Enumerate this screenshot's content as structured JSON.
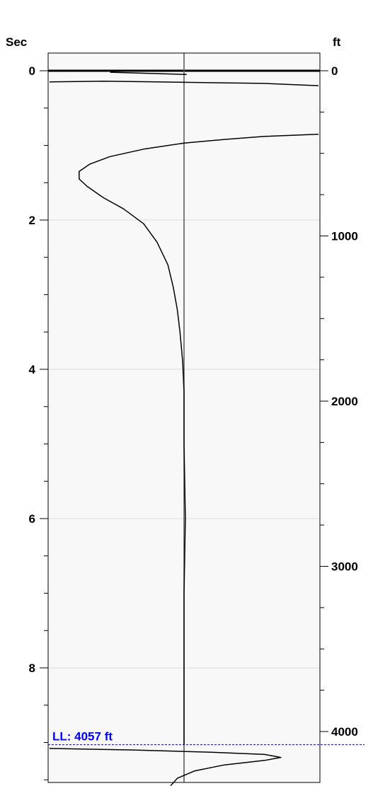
{
  "chart_data": {
    "type": "line",
    "left_axis": {
      "unit_label": "Sec",
      "ticks": [
        "0",
        "2",
        "4",
        "6",
        "8"
      ],
      "range": [
        0,
        9.6
      ]
    },
    "right_axis": {
      "unit_label": "ft",
      "ticks": [
        "0",
        "1000",
        "2000",
        "3000",
        "4000"
      ],
      "range": [
        0,
        4200
      ]
    },
    "grid": true,
    "colors": {
      "trace": "#000000",
      "marker": "#0000ff",
      "grid": "#dddddd",
      "plot_bg": "#f8f8f8",
      "centerline": "#555555"
    },
    "center_value": 0,
    "x_range": [
      -1,
      1
    ],
    "marker": {
      "label": "LL: 4057 ft",
      "time": 9.03
    },
    "series": [
      {
        "x": [
          -0.55,
          0.02
        ],
        "y": [
          0.02,
          0.05
        ]
      },
      {
        "x": [
          -1.0,
          -0.6,
          -0.2,
          0.2,
          0.6,
          1.0
        ],
        "y": [
          0.15,
          0.14,
          0.15,
          0.16,
          0.17,
          0.2
        ]
      },
      {
        "x": [
          1.0,
          0.6,
          0.3,
          0.0,
          -0.3,
          -0.55,
          -0.7,
          -0.78,
          -0.78,
          -0.72,
          -0.6,
          -0.45,
          -0.3,
          -0.2,
          -0.12,
          -0.08,
          -0.05,
          -0.03,
          -0.01,
          0.0,
          0.0,
          0.01,
          0.0,
          0.0,
          0.0
        ],
        "y": [
          0.85,
          0.88,
          0.92,
          0.97,
          1.05,
          1.15,
          1.25,
          1.35,
          1.45,
          1.55,
          1.7,
          1.85,
          2.05,
          2.3,
          2.6,
          2.9,
          3.2,
          3.5,
          3.9,
          4.3,
          5.0,
          6.0,
          7.0,
          8.0,
          9.03
        ]
      },
      {
        "x": [
          -1.0,
          -0.4,
          0.2,
          0.6,
          0.72,
          0.6,
          0.3,
          0.08,
          -0.05,
          -0.1
        ],
        "y": [
          9.08,
          9.1,
          9.13,
          9.16,
          9.2,
          9.24,
          9.3,
          9.38,
          9.48,
          9.58
        ]
      }
    ]
  }
}
